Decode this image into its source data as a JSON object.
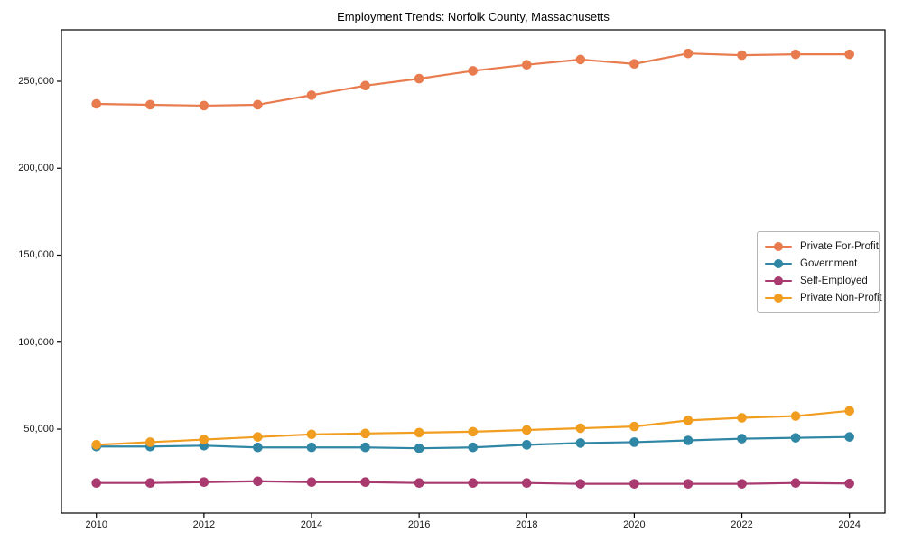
{
  "title": "Employment Trends: Norfolk County, Massachusetts",
  "chart_data": {
    "type": "line",
    "title": "Employment Trends: Norfolk County, Massachusetts",
    "xlabel": "",
    "ylabel": "",
    "grid": false,
    "legend_position": "center right",
    "xlim": [
      2009.35,
      2024.66
    ],
    "ylim": [
      1700,
      279600
    ],
    "x": [
      2010,
      2011,
      2012,
      2013,
      2014,
      2015,
      2016,
      2017,
      2018,
      2019,
      2020,
      2021,
      2022,
      2023,
      2024
    ],
    "series": [
      {
        "name": "Private For-Profit",
        "color": "#e97c4f",
        "values": [
          237000,
          236500,
          236000,
          236500,
          242000,
          247500,
          251500,
          256000,
          259500,
          262500,
          260000,
          266000,
          265000,
          265500,
          265500
        ]
      },
      {
        "name": "Government",
        "color": "#2f87a5",
        "values": [
          40000,
          40000,
          40500,
          39500,
          39500,
          39500,
          39000,
          39500,
          41000,
          42000,
          42500,
          43500,
          44500,
          45000,
          45500
        ]
      },
      {
        "name": "Self-Employed",
        "color": "#a83a70",
        "values": [
          19000,
          19000,
          19500,
          20000,
          19500,
          19500,
          19000,
          19000,
          19000,
          18500,
          18500,
          18500,
          18500,
          19000,
          18700
        ]
      },
      {
        "name": "Private Non-Profit",
        "color": "#f19d1f",
        "values": [
          41000,
          42500,
          44000,
          45500,
          47000,
          47500,
          48000,
          48500,
          49500,
          50500,
          51500,
          55000,
          56500,
          57500,
          60500
        ]
      }
    ],
    "y_ticks": [
      {
        "value": 50000,
        "label": "50,000"
      },
      {
        "value": 100000,
        "label": "100,000"
      },
      {
        "value": 150000,
        "label": "150,000"
      },
      {
        "value": 200000,
        "label": "200,000"
      },
      {
        "value": 250000,
        "label": "250,000"
      }
    ],
    "x_ticks": [
      {
        "value": 2010,
        "label": "2010"
      },
      {
        "value": 2012,
        "label": "2012"
      },
      {
        "value": 2014,
        "label": "2014"
      },
      {
        "value": 2016,
        "label": "2016"
      },
      {
        "value": 2018,
        "label": "2018"
      },
      {
        "value": 2020,
        "label": "2020"
      },
      {
        "value": 2022,
        "label": "2022"
      },
      {
        "value": 2024,
        "label": "2024"
      }
    ]
  }
}
